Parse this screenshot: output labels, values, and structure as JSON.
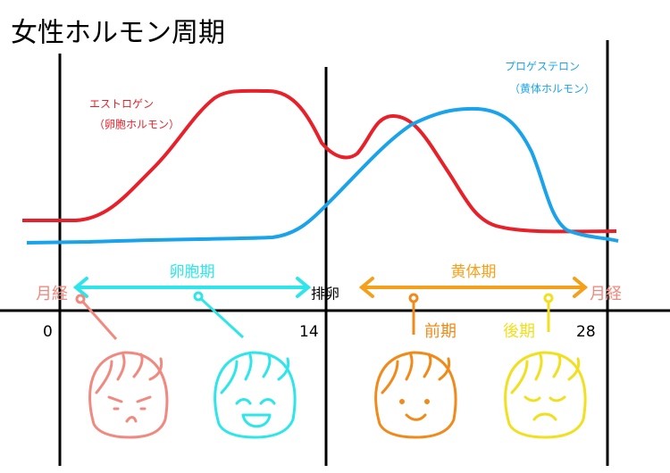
{
  "title": "女性ホルモン周期",
  "hormones": [
    {
      "name": "エストロゲン",
      "subtitle": "（卵胞ホルモン）"
    },
    {
      "name": "プロゲステロン",
      "subtitle": "（黄体ホルモン）"
    }
  ],
  "phases": [
    {
      "label": "卵胞期"
    },
    {
      "label": "黄体期"
    }
  ],
  "markers": {
    "menstruation_start": "月経",
    "ovulation": "排卵",
    "menstruation_end": "月経"
  },
  "days": [
    0,
    14,
    28
  ],
  "luteal_parts": [
    "前期",
    "後期"
  ]
}
